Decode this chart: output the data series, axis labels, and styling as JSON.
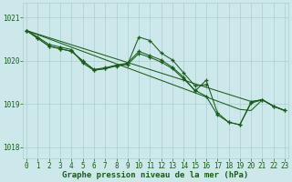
{
  "x": [
    0,
    1,
    2,
    3,
    4,
    5,
    6,
    7,
    8,
    9,
    10,
    11,
    12,
    13,
    14,
    15,
    16,
    17,
    18,
    19,
    20,
    21,
    22,
    23
  ],
  "line_zigzag": [
    1020.7,
    1020.55,
    1020.38,
    1020.32,
    1020.26,
    1019.95,
    1019.78,
    1019.82,
    1019.88,
    1019.92,
    1020.55,
    1020.47,
    1020.18,
    1020.02,
    1019.72,
    1019.42,
    1019.45,
    null,
    null,
    null,
    null,
    null,
    null,
    null
  ],
  "line_main": [
    1020.7,
    1020.52,
    1020.34,
    1020.28,
    1020.22,
    1020.0,
    1019.79,
    1019.82,
    1019.9,
    1019.95,
    1020.22,
    1020.12,
    1020.02,
    1019.85,
    1019.62,
    1019.3,
    1019.55,
    1018.8,
    1018.58,
    1018.52,
    1019.05,
    1019.1,
    1018.95,
    1018.85
  ],
  "line_smooth": [
    1020.7,
    1020.52,
    1020.34,
    1020.28,
    1020.22,
    1020.0,
    1019.8,
    1019.84,
    1019.9,
    1019.92,
    1020.17,
    1020.08,
    1019.97,
    1019.82,
    1019.58,
    1019.32,
    1019.18,
    1018.75,
    1018.58,
    1018.52,
    1019.02,
    1019.1,
    1018.95,
    1018.85
  ],
  "line_straight_top": [
    1020.7,
    1020.618,
    1020.536,
    1020.454,
    1020.372,
    1020.29,
    1020.208,
    1020.126,
    1020.044,
    1019.962,
    1019.88,
    1019.798,
    1019.716,
    1019.634,
    1019.552,
    1019.47,
    1019.388,
    1019.306,
    1019.224,
    1019.142,
    1019.06,
    1019.1,
    1018.95,
    1018.85
  ],
  "line_straight_bot": [
    1020.7,
    1020.604,
    1020.508,
    1020.412,
    1020.316,
    1020.22,
    1020.124,
    1020.028,
    1019.932,
    1019.836,
    1019.74,
    1019.644,
    1019.548,
    1019.452,
    1019.356,
    1019.26,
    1019.164,
    1019.068,
    1018.972,
    1018.876,
    1018.85,
    1019.1,
    1018.95,
    1018.85
  ],
  "background_color": "#cce8ea",
  "line_color": "#1a5c1a",
  "grid_color": "#aacfcf",
  "text_color": "#1a5c1a",
  "title": "Graphe pression niveau de la mer (hPa)",
  "ylabel_ticks": [
    1018,
    1019,
    1020,
    1021
  ],
  "xlim": [
    -0.3,
    23.3
  ],
  "ylim": [
    1017.75,
    1021.35
  ],
  "title_fontsize": 6.5,
  "tick_fontsize": 5.5
}
